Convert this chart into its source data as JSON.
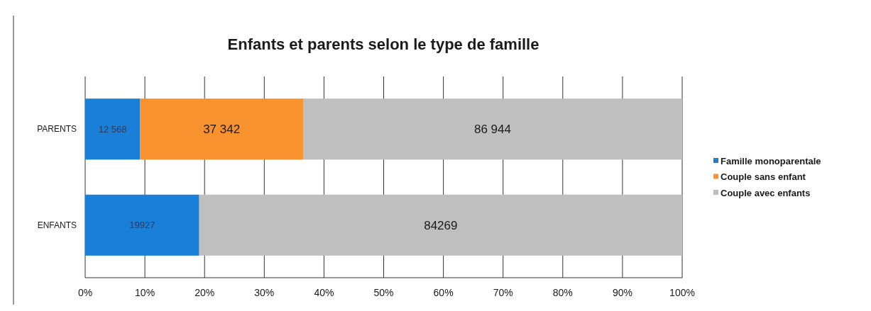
{
  "chart_data": {
    "type": "bar",
    "orientation": "horizontal",
    "stacked": true,
    "title": "Enfants et parents selon le type de famille",
    "categories": [
      "PARENTS",
      "ENFANTS"
    ],
    "series": [
      {
        "name": "Famille monoparentale",
        "color": "#1a7fd6",
        "values": [
          9.2,
          19.1
        ]
      },
      {
        "name": "Couple sans enfant",
        "color": "#f7922f",
        "values": [
          27.3,
          null
        ]
      },
      {
        "name": "Couple avec enfants",
        "color": "#bfbfbf",
        "values": [
          63.5,
          80.9
        ]
      }
    ],
    "annotations": [
      "12 568",
      "37 342",
      "86 944",
      "19927",
      "84269"
    ],
    "xlim": [
      0,
      100
    ],
    "xticks": [
      {
        "value": 0,
        "label": "0%"
      },
      {
        "value": 10,
        "label": "10%"
      },
      {
        "value": 20,
        "label": "20%"
      },
      {
        "value": 30,
        "label": "30%"
      },
      {
        "value": 40,
        "label": "40%"
      },
      {
        "value": 50,
        "label": "50%"
      },
      {
        "value": 60,
        "label": "60%"
      },
      {
        "value": 70,
        "label": "70%"
      },
      {
        "value": 80,
        "label": "80%"
      },
      {
        "value": 90,
        "label": "90%"
      },
      {
        "value": 100,
        "label": "100%"
      }
    ],
    "grid": "x",
    "legend": "right"
  }
}
